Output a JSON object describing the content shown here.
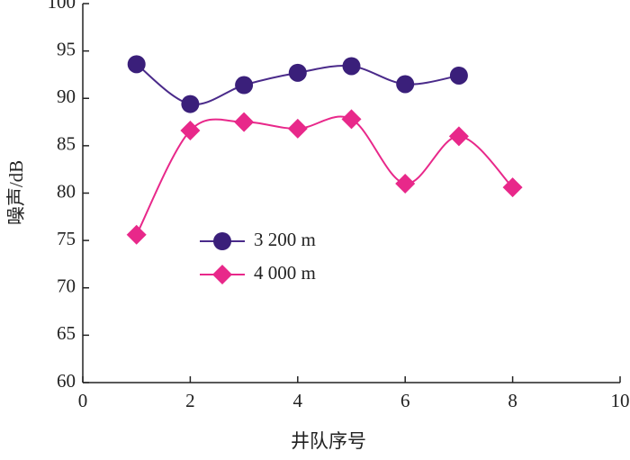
{
  "chart_data": {
    "type": "line",
    "xlabel": "井队序号",
    "ylabel": "噪声/dB",
    "xlim": [
      0,
      10
    ],
    "xticks": [
      0,
      2,
      4,
      6,
      8,
      10
    ],
    "ylim": [
      60,
      100
    ],
    "yticks": [
      60,
      65,
      70,
      75,
      80,
      85,
      90,
      95,
      100
    ],
    "legend": "center",
    "smooth": true,
    "series": [
      {
        "name": "3 200 m",
        "color": "#3a1f7a",
        "marker": "circle",
        "line_color": "#4a2a8a",
        "x": [
          1,
          2,
          3,
          4,
          5,
          6,
          7
        ],
        "values": [
          93.6,
          89.4,
          91.4,
          92.7,
          93.4,
          91.5,
          92.4
        ]
      },
      {
        "name": "4 000 m",
        "color": "#e8288a",
        "marker": "diamond",
        "line_color": "#e8288a",
        "x": [
          1,
          2,
          3,
          4,
          5,
          6,
          7,
          8
        ],
        "values": [
          75.6,
          86.6,
          87.5,
          86.8,
          87.8,
          81.0,
          86.0,
          80.6
        ]
      }
    ]
  }
}
